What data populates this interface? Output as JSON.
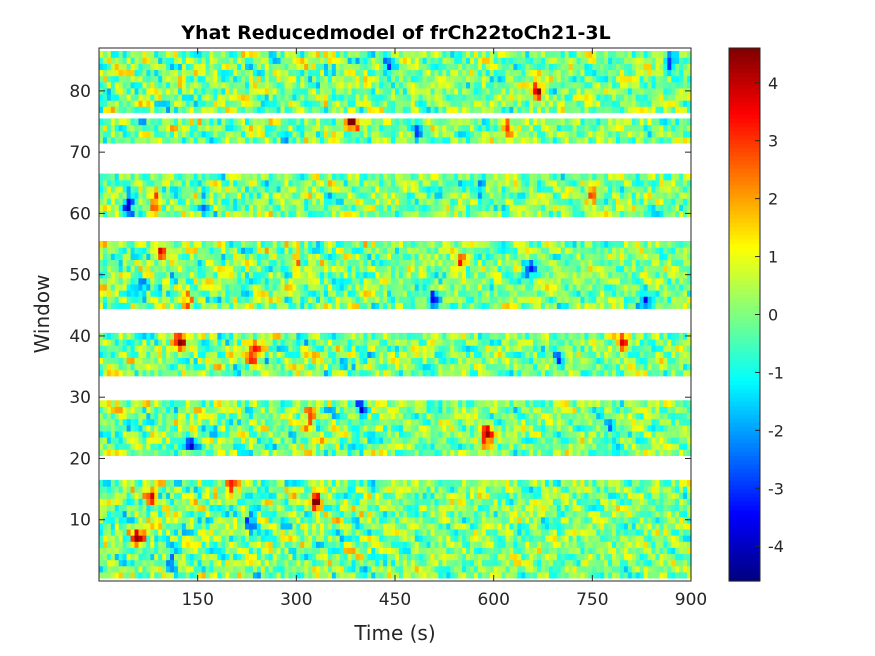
{
  "chart_data": {
    "type": "heatmap",
    "title": "Yhat Reducedmodel of frCh22toCh21-3L",
    "xlabel": "Time (s)",
    "ylabel": "Window",
    "xlim": [
      0,
      900
    ],
    "ylim": [
      0,
      87
    ],
    "xticks": [
      150,
      300,
      450,
      600,
      750,
      900
    ],
    "xtick_labels": [
      "150",
      "300",
      "450",
      "600",
      "750",
      "900"
    ],
    "yticks": [
      10,
      20,
      30,
      40,
      50,
      60,
      70,
      80
    ],
    "ytick_labels": [
      "10",
      "20",
      "30",
      "40",
      "50",
      "60",
      "70",
      "80"
    ],
    "colormap": "jet",
    "clim": [
      -4.6,
      4.6
    ],
    "colorbar_ticks": [
      4,
      3,
      2,
      1,
      0,
      -1,
      -2,
      -3,
      -4
    ],
    "colorbar_tick_labels": [
      "4",
      "3",
      "2",
      "1",
      "0",
      "-1",
      "-2",
      "-3",
      "-4"
    ],
    "missing_color": "#ffffff",
    "data_window_bands": [
      [
        1,
        16
      ],
      [
        21,
        29
      ],
      [
        34,
        40
      ],
      [
        45,
        55
      ],
      [
        60,
        66
      ],
      [
        72,
        75
      ],
      [
        77,
        86
      ]
    ],
    "blank_window_bands": [
      [
        17,
        20
      ],
      [
        30,
        33
      ],
      [
        41,
        44
      ],
      [
        56,
        59
      ],
      [
        67,
        71
      ],
      [
        76,
        76
      ]
    ],
    "hotspots": [
      {
        "time": 125,
        "window": 39,
        "value": 4.5
      },
      {
        "time": 590,
        "window": 24,
        "value": 4.4
      },
      {
        "time": 330,
        "window": 13,
        "value": 4.5
      },
      {
        "time": 665,
        "window": 80,
        "value": 4.3
      },
      {
        "time": 85,
        "window": 62,
        "value": 4.0
      },
      {
        "time": 60,
        "window": 7,
        "value": 4.2
      },
      {
        "time": 235,
        "window": 37,
        "value": 3.8
      },
      {
        "time": 385,
        "window": 75,
        "value": 3.6
      },
      {
        "time": 80,
        "window": 14,
        "value": 3.5
      },
      {
        "time": 795,
        "window": 39,
        "value": 3.2
      },
      {
        "time": 320,
        "window": 26,
        "value": 3.3
      },
      {
        "time": 95,
        "window": 54,
        "value": 3.0
      },
      {
        "time": 550,
        "window": 52,
        "value": 3.0
      },
      {
        "time": 750,
        "window": 63,
        "value": 2.8
      },
      {
        "time": 135,
        "window": 45,
        "value": 2.9
      },
      {
        "time": 200,
        "window": 16,
        "value": 3.0
      },
      {
        "time": 620,
        "window": 74,
        "value": 2.8
      },
      {
        "time": 300,
        "window": 52,
        "value": 2.6
      },
      {
        "time": 45,
        "window": 62,
        "value": -3.5
      },
      {
        "time": 830,
        "window": 46,
        "value": -3.0
      },
      {
        "time": 510,
        "window": 46,
        "value": -3.2
      },
      {
        "time": 230,
        "window": 10,
        "value": -3.0
      },
      {
        "time": 440,
        "window": 84,
        "value": -2.8
      },
      {
        "time": 655,
        "window": 51,
        "value": -3.0
      },
      {
        "time": 870,
        "window": 85,
        "value": -3.2
      },
      {
        "time": 60,
        "window": 48,
        "value": -2.9
      },
      {
        "time": 400,
        "window": 28,
        "value": -2.8
      },
      {
        "time": 140,
        "window": 22,
        "value": -2.6
      },
      {
        "time": 580,
        "window": 64,
        "value": -2.7
      },
      {
        "time": 110,
        "window": 4,
        "value": -2.9
      },
      {
        "time": 780,
        "window": 25,
        "value": -2.5
      },
      {
        "time": 485,
        "window": 73,
        "value": -2.5
      },
      {
        "time": 160,
        "window": 62,
        "value": -2.6
      },
      {
        "time": 700,
        "window": 36,
        "value": -2.4
      }
    ]
  }
}
